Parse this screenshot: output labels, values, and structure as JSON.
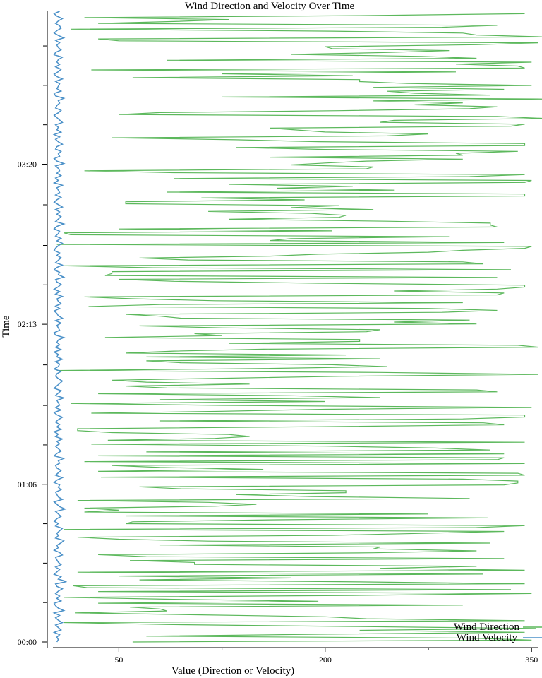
{
  "chart_data": {
    "type": "line",
    "title": "Wind Direction and Velocity Over Time",
    "xlabel": "Value (Direction or Velocity)",
    "ylabel": "Time",
    "xlim": [
      -2,
      355
    ],
    "ylim_minutes": [
      0,
      264
    ],
    "x_ticks": [
      50,
      200,
      350
    ],
    "x_ticks_unlabeled": [
      125,
      275
    ],
    "y_ticks": [
      {
        "label": "00:00",
        "minutes": 0
      },
      {
        "label": "01:06",
        "minutes": 66
      },
      {
        "label": "02:13",
        "minutes": 133
      },
      {
        "label": "03:20",
        "minutes": 200
      }
    ],
    "y_ticks_unlabeled_minutes": [
      16.5,
      33,
      49.5,
      82.5,
      99,
      116,
      149.5,
      166,
      183,
      216.5,
      233,
      249.5
    ],
    "legend_position": "bottom-right",
    "colors": {
      "wind_direction": "#5cb85c",
      "wind_velocity": "#4a90c8"
    },
    "series": [
      {
        "name": "Wind Direction",
        "color": "#5cb85c",
        "y_end_minutes": 263,
        "values": [
          60,
          350,
          305,
          70,
          195,
          345,
          225,
          353,
          215,
          85,
          10,
          345,
          230,
          200,
          110,
          18,
          85,
          80,
          58,
          300,
          35,
          195,
          90,
          10,
          220,
          350,
          35,
          335,
          27,
          17,
          345,
          225,
          65,
          175,
          50,
          315,
          20,
          345,
          240,
          310,
          105,
          105,
          58,
          330,
          70,
          35,
          235,
          310,
          235,
          240,
          80,
          320,
          115,
          50,
          20,
          205,
          270,
          330,
          10,
          310,
          345,
          55,
          60,
          165,
          318,
          55,
          275,
          25,
          50,
          25,
          120,
          150,
          115,
          20,
          305,
          190,
          135,
          215,
          215,
          95,
          65,
          330,
          340,
          340,
          300,
          37,
          345,
          340,
          35,
          155,
          80,
          45,
          345,
          25,
          325,
          330,
          35,
          330,
          70,
          320,
          280,
          200,
          30,
          345,
          42,
          120,
          145,
          130,
          45,
          20,
          20,
          195,
          330,
          315,
          80,
          300,
          345,
          345,
          30,
          125,
          200,
          350,
          125,
          15,
          200,
          80,
          240,
          175,
          35,
          325,
          310,
          85,
          55,
          145,
          70,
          45,
          125,
          210,
          355,
          240,
          5,
          150,
          245,
          205,
          95,
          70,
          240,
          70,
          215,
          55,
          90,
          155,
          355,
          340,
          130,
          225,
          225,
          40,
          125,
          105,
          230,
          240,
          125,
          65,
          310,
          250,
          305,
          95,
          80,
          55,
          285,
          325,
          275,
          28,
          80,
          300,
          120,
          60,
          25,
          325,
          330,
          250,
          325,
          345,
          345,
          195,
          90,
          50,
          325,
          40,
          45,
          45,
          335,
          75,
          10,
          315,
          300,
          100,
          65,
          160,
          195,
          275,
          300,
          345,
          350,
          5,
          330,
          160,
          175,
          290,
          15,
          10,
          205,
          50,
          325,
          320,
          320,
          245,
          130,
          210,
          215,
          190,
          115,
          235,
          175,
          210,
          55,
          55,
          185,
          110,
          345,
          345,
          85,
          250,
          165,
          220,
          130,
          345,
          350,
          90,
          305,
          345,
          90,
          25,
          230,
          235,
          175,
          200,
          230,
          300,
          160,
          300,
          295,
          340,
          200,
          135,
          345,
          345,
          195,
          135,
          45,
          245,
          275,
          200,
          180,
          160,
          335,
          345,
          240,
          250,
          360,
          325,
          50,
          80,
          210,
          305,
          325,
          265,
          300,
          235,
          360,
          125,
          320,
          265,
          245,
          330,
          235,
          350,
          260,
          225,
          225,
          60,
          220,
          125,
          295,
          30,
          345,
          340,
          295,
          350,
          85,
          310,
          270,
          175,
          245,
          290,
          205,
          200,
          310,
          355,
          50,
          35,
          360,
          310,
          300,
          205,
          15,
          285,
          325,
          35,
          90,
          130,
          25,
          225,
          345
        ]
      },
      {
        "name": "Wind Velocity",
        "color": "#4a90c8",
        "values": [
          5,
          6,
          5,
          7,
          3,
          8,
          6,
          4,
          9,
          6,
          4,
          7,
          3,
          10,
          6,
          4,
          3,
          8,
          5,
          7,
          4,
          6,
          9,
          5,
          4,
          12,
          6,
          8,
          3,
          5,
          7,
          4,
          8,
          6,
          5,
          4,
          9,
          7,
          3,
          6,
          5,
          8,
          10,
          4,
          6,
          5,
          7,
          9,
          4,
          6,
          3,
          5,
          8,
          6,
          4,
          11,
          7,
          5,
          3,
          9,
          6,
          5,
          4,
          8,
          6,
          7,
          3,
          5,
          9,
          4,
          6,
          8,
          5,
          4,
          7,
          6,
          10,
          3,
          5,
          8,
          6,
          4,
          7,
          5,
          9,
          4,
          6,
          3,
          8,
          5,
          7,
          4,
          6,
          9,
          5,
          3,
          8,
          4,
          7,
          6,
          5,
          10,
          4,
          6,
          8,
          3,
          5,
          7,
          9,
          6,
          4,
          5,
          8,
          3,
          6,
          7,
          4,
          9,
          5,
          6,
          3,
          8,
          4,
          7,
          5,
          6,
          10,
          4,
          3,
          7,
          6,
          5,
          8,
          4,
          9,
          6,
          5,
          3,
          7,
          4,
          8,
          6,
          5,
          9,
          4,
          7,
          3,
          6,
          8,
          5,
          4,
          10,
          6,
          7,
          3,
          5,
          9,
          4,
          6,
          8,
          5,
          7,
          3,
          4,
          6,
          9,
          5,
          8,
          4,
          6,
          7,
          3,
          5,
          10,
          4,
          6,
          8,
          5,
          7,
          4,
          9,
          6,
          3,
          5,
          8,
          4,
          7,
          6,
          5,
          9,
          3,
          6,
          4,
          8,
          5,
          7,
          6,
          4,
          10,
          5,
          3,
          7,
          6,
          8,
          4,
          5,
          9,
          6,
          4,
          7,
          3,
          8,
          5,
          6,
          4,
          9,
          7,
          5,
          3,
          6,
          8,
          4,
          5,
          7,
          6,
          10,
          4,
          3,
          8,
          5,
          6,
          7,
          4,
          9,
          5,
          3,
          6,
          8,
          4,
          7,
          5,
          6,
          9,
          3,
          4,
          8,
          6,
          5,
          7,
          4,
          10,
          6,
          3,
          5,
          8,
          7,
          4,
          6,
          9,
          5,
          3,
          7
        ]
      }
    ]
  }
}
